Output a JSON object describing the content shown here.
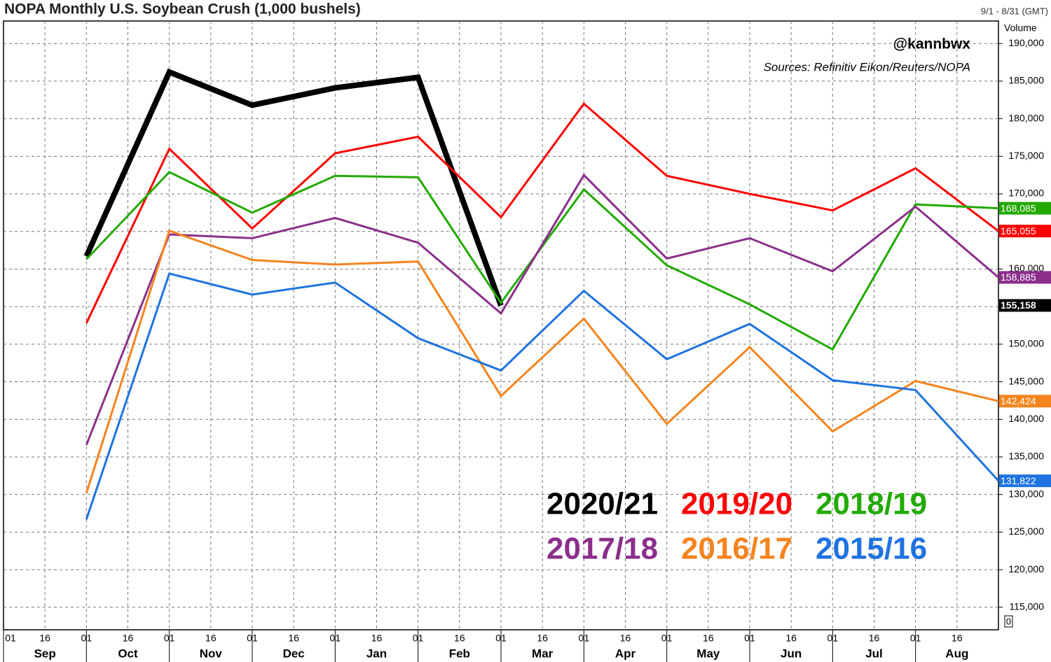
{
  "chart_data": {
    "type": "line",
    "title": "NOPA Monthly U.S. Soybean Crush (1,000 bushels)",
    "date_range": "9/1 - 8/31 (GMT)",
    "axis_label": "Volume",
    "handle": "@kannbwx",
    "source": "Sources: Refinitiv Eikon/Reuters/NOPA",
    "zero_label": "0",
    "categories": [
      "Sep",
      "Oct",
      "Nov",
      "Dec",
      "Jan",
      "Feb",
      "Mar",
      "Apr",
      "May",
      "Jun",
      "Jul",
      "Aug"
    ],
    "day_ticks": [
      "01",
      "16"
    ],
    "ylim": [
      112000,
      193000
    ],
    "yticks": [
      {
        "value": 115000,
        "label": "115,000"
      },
      {
        "value": 120000,
        "label": "120,000"
      },
      {
        "value": 125000,
        "label": "125,000"
      },
      {
        "value": 130000,
        "label": "130,000"
      },
      {
        "value": 135000,
        "label": "135,000"
      },
      {
        "value": 140000,
        "label": "140,000"
      },
      {
        "value": 145000,
        "label": "145,000"
      },
      {
        "value": 150000,
        "label": "150,000"
      },
      {
        "value": 155000,
        "label": "155,000"
      },
      {
        "value": 160000,
        "label": "160,000"
      },
      {
        "value": 165000,
        "label": "165,000"
      },
      {
        "value": 170000,
        "label": "170,000"
      },
      {
        "value": 175000,
        "label": "175,000"
      },
      {
        "value": 180000,
        "label": "180,000"
      },
      {
        "value": 185000,
        "label": "185,000"
      },
      {
        "value": 190000,
        "label": "190,000"
      }
    ],
    "grid": true,
    "series": [
      {
        "name": "2020/21",
        "color": "#000000",
        "width": 8,
        "values": [
          161700,
          186200,
          181800,
          184100,
          185500,
          155158,
          null,
          null,
          null,
          null,
          null,
          null
        ],
        "value_labels": [
          null,
          null,
          null,
          null,
          null,
          "155,158",
          null,
          null,
          null,
          null,
          null,
          null
        ]
      },
      {
        "name": "2019/20",
        "color": "#ff0000",
        "width": 3,
        "values": [
          152800,
          176000,
          165400,
          175400,
          177600,
          166900,
          182000,
          172400,
          170000,
          167800,
          173400,
          165055
        ],
        "value_labels": [
          null,
          null,
          null,
          null,
          null,
          null,
          null,
          null,
          null,
          null,
          null,
          "165,055"
        ]
      },
      {
        "name": "2018/19",
        "color": "#22aa00",
        "width": 3,
        "values": [
          161300,
          172900,
          167500,
          172400,
          172200,
          155500,
          170600,
          160500,
          155300,
          149300,
          168600,
          168085
        ],
        "value_labels": [
          null,
          null,
          null,
          null,
          null,
          null,
          null,
          null,
          null,
          null,
          null,
          "168,085"
        ]
      },
      {
        "name": "2017/18",
        "color": "#8b2f8b",
        "width": 3,
        "values": [
          136600,
          164600,
          164100,
          166800,
          163500,
          154100,
          172500,
          161400,
          164100,
          159700,
          168300,
          158885
        ],
        "value_labels": [
          null,
          null,
          null,
          null,
          null,
          null,
          null,
          null,
          null,
          null,
          null,
          "158,885"
        ]
      },
      {
        "name": "2016/17",
        "color": "#f5841f",
        "width": 3,
        "values": [
          130200,
          165100,
          161200,
          160600,
          161000,
          143100,
          153400,
          139400,
          149600,
          138400,
          145100,
          142424
        ],
        "value_labels": [
          null,
          null,
          null,
          null,
          null,
          null,
          null,
          null,
          null,
          null,
          null,
          "142,424"
        ]
      },
      {
        "name": "2015/16",
        "color": "#1e73e0",
        "width": 3,
        "values": [
          126700,
          159400,
          156600,
          158200,
          150800,
          146500,
          157100,
          148000,
          152700,
          145200,
          143900,
          131822
        ],
        "value_labels": [
          null,
          null,
          null,
          null,
          null,
          null,
          null,
          null,
          null,
          null,
          null,
          "131,822"
        ]
      }
    ]
  }
}
